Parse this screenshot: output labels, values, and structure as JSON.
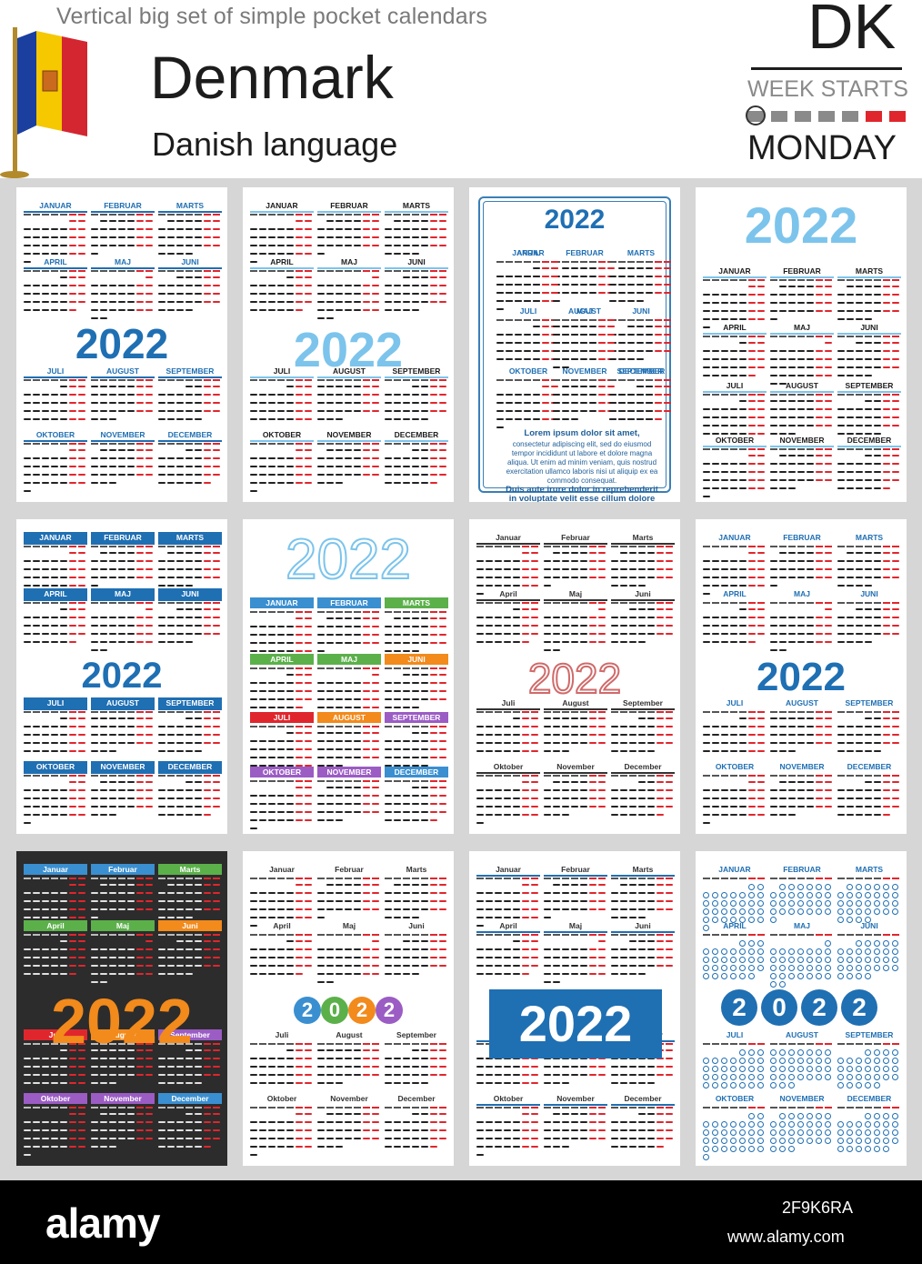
{
  "header": {
    "tagline": "Vertical big set of simple pocket calendars",
    "country": "Denmark",
    "language": "Danish language",
    "country_code": "DK",
    "week_starts": "WEEK STARTS",
    "start_day": "MONDAY",
    "flag_colors": [
      "#1a3f9e",
      "#f5c800",
      "#d32630"
    ]
  },
  "year": "2022",
  "year_digits": [
    "2",
    "0",
    "2",
    "2"
  ],
  "months_upper": [
    "JANUAR",
    "FEBRUAR",
    "MARTS",
    "APRIL",
    "MAJ",
    "JUNI",
    "JULI",
    "AUGUST",
    "SEPTEMBER",
    "OKTOBER",
    "NOVEMBER",
    "DECEMBER"
  ],
  "months_title": [
    "Januar",
    "Februar",
    "Marts",
    "April",
    "Maj",
    "Juni",
    "Juli",
    "August",
    "September",
    "Oktober",
    "November",
    "December"
  ],
  "month_first_weekday": [
    5,
    1,
    1,
    4,
    6,
    2,
    4,
    0,
    3,
    5,
    1,
    3
  ],
  "month_lengths": [
    31,
    28,
    31,
    30,
    31,
    30,
    31,
    31,
    30,
    31,
    30,
    31
  ],
  "lorem": {
    "title": "Lorem ipsum dolor sit amet,",
    "body": "consectetur adipiscing elit, sed do eiusmod tempor incididunt ut labore et dolore magna aliqua. Ut enim ad minim veniam, quis nostrud exercitation ullamco laboris nisi ut aliquip ex ea commodo consequat.",
    "closing": "Duis aute irure dolor in reprehenderit in voluptate velit esse cillum dolore eu fugiat nulla pariatur."
  },
  "colors": {
    "blue": "#1f6fb3",
    "light_blue": "#7cc4ec",
    "red": "#e0262d",
    "dark": "#2c2c2c",
    "orange": "#f28a1c"
  },
  "footer": {
    "brand": "alamy",
    "image_id": "2F9K6RA",
    "site": "www.alamy.com"
  }
}
